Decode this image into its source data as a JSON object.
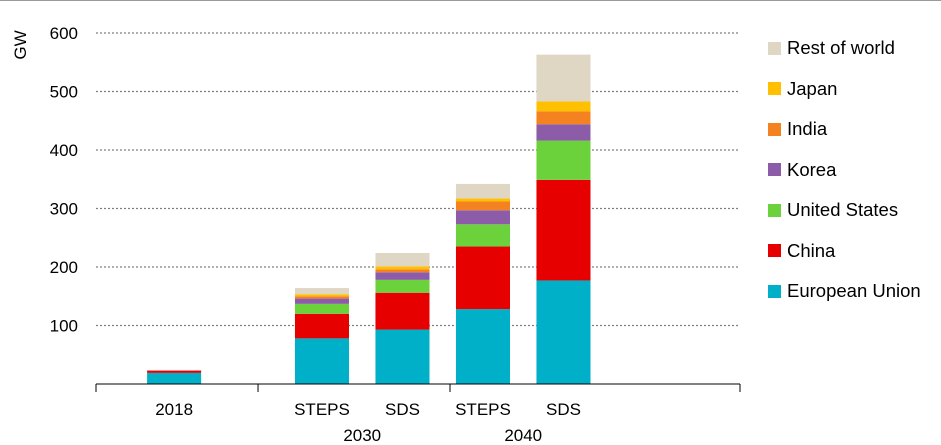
{
  "chart_data": {
    "type": "bar",
    "stacked": true,
    "ylabel": "GW",
    "ylim": [
      0,
      600
    ],
    "yticks": [
      100,
      200,
      300,
      400,
      500,
      600
    ],
    "grid": true,
    "legend_position": "right",
    "groups": [
      {
        "label": "",
        "bars": [
          {
            "label": "2018"
          }
        ]
      },
      {
        "label": "2030",
        "bars": [
          {
            "label": "STEPS"
          },
          {
            "label": "SDS"
          }
        ]
      },
      {
        "label": "2040",
        "bars": [
          {
            "label": "STEPS"
          },
          {
            "label": "SDS"
          }
        ]
      }
    ],
    "categories": [
      "2018",
      "2030 STEPS",
      "2030 SDS",
      "2040 STEPS",
      "2040 SDS"
    ],
    "series": [
      {
        "name": "European Union",
        "color": "#00afc8",
        "values": [
          19,
          78,
          93,
          128,
          177
        ]
      },
      {
        "name": "China",
        "color": "#e60000",
        "values": [
          4,
          42,
          63,
          107,
          172
        ]
      },
      {
        "name": "United States",
        "color": "#6bd23c",
        "values": [
          0,
          17,
          22,
          38,
          67
        ]
      },
      {
        "name": "Korea",
        "color": "#8c5ca8",
        "values": [
          0,
          9,
          13,
          24,
          28
        ]
      },
      {
        "name": "India",
        "color": "#f58220",
        "values": [
          0,
          4,
          5,
          15,
          22
        ]
      },
      {
        "name": "Japan",
        "color": "#ffc000",
        "values": [
          0,
          3,
          5,
          5,
          17
        ]
      },
      {
        "name": "Rest of world",
        "color": "#dfd6c4",
        "values": [
          0,
          11,
          23,
          25,
          80
        ]
      }
    ]
  }
}
